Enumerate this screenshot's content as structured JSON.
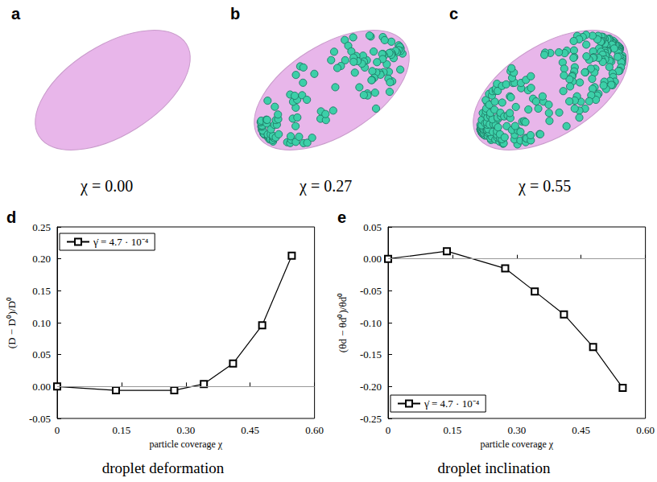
{
  "panels": [
    {
      "letter": "a",
      "label": "χ = 0.00",
      "coverage": 0
    },
    {
      "letter": "b",
      "label": "χ = 0.27",
      "coverage": 0.27
    },
    {
      "letter": "c",
      "label": "χ = 0.55",
      "coverage": 0.55
    }
  ],
  "chart_data": [
    {
      "type": "line",
      "letter": "d",
      "title": "droplet deformation",
      "x_label": "particle coverage χ",
      "y_label": "(D − D⁰)/D⁰",
      "x": [
        0,
        0.137,
        0.273,
        0.342,
        0.41,
        0.478,
        0.547
      ],
      "series": [
        {
          "name": "γ̇ = 4.7 · 10⁻⁴",
          "color": "#000000",
          "marker": "square",
          "values": [
            0,
            -0.006,
            -0.006,
            0.004,
            0.036,
            0.096,
            0.205
          ]
        }
      ],
      "xlim": [
        0,
        0.6
      ],
      "xticks": [
        0,
        0.15,
        {
          "value": 0.3,
          "label": "0.30"
        },
        0.45,
        {
          "value": 0.6,
          "label": "0.60"
        }
      ],
      "ylim": [
        -0.05,
        0.25
      ],
      "yticks": [
        -0.05,
        {
          "value": 0,
          "label": "0.00"
        },
        0.05,
        {
          "value": 0.1,
          "label": "0.10"
        },
        0.15,
        {
          "value": 0.2,
          "label": "0.20"
        },
        0.25
      ],
      "hline": 0,
      "legend": "upper left",
      "grid": false
    },
    {
      "type": "line",
      "letter": "e",
      "title": "droplet inclination",
      "x_label": "particle coverage χ",
      "y_label": "(θd − θd⁰)/θd⁰",
      "x": [
        0,
        0.137,
        0.273,
        0.342,
        0.41,
        0.478,
        0.547
      ],
      "series": [
        {
          "name": "γ̇ = 4.7 · 10⁻⁴",
          "color": "#000000",
          "marker": "square",
          "values": [
            0,
            0.012,
            -0.015,
            -0.051,
            -0.087,
            -0.138,
            -0.202
          ]
        }
      ],
      "xlim": [
        0,
        0.6
      ],
      "xticks": [
        0,
        0.15,
        {
          "value": 0.3,
          "label": "0.30"
        },
        0.45,
        {
          "value": 0.6,
          "label": "0.60"
        }
      ],
      "ylim": [
        -0.25,
        0.05
      ],
      "yticks": [
        -0.25,
        {
          "value": -0.2,
          "label": "-0.20"
        },
        -0.15,
        {
          "value": -0.1,
          "label": "-0.10"
        },
        -0.05,
        {
          "value": 0,
          "label": "0.00"
        },
        0.05
      ],
      "hline": 0,
      "legend": "lower left",
      "grid": false
    }
  ]
}
